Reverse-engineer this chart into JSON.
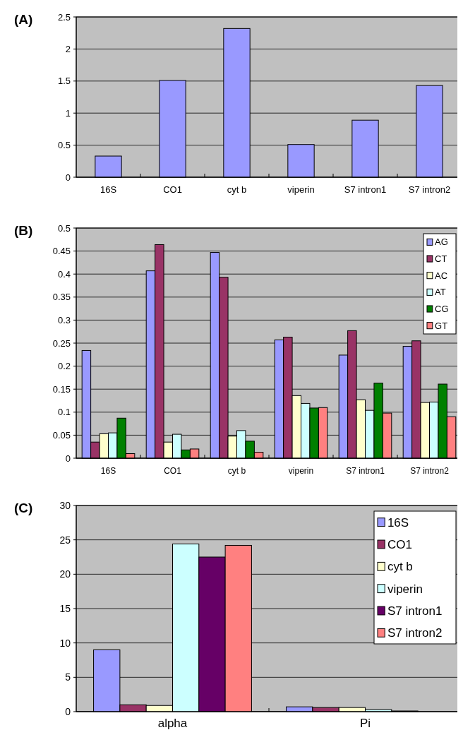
{
  "chart_data": [
    {
      "type": "bar",
      "title": "(A)",
      "categories": [
        "16S",
        "CO1",
        "cyt b",
        "viperin",
        "S7 intron1",
        "S7 intron2"
      ],
      "values": [
        0.33,
        1.51,
        2.32,
        0.51,
        0.89,
        1.43
      ],
      "color": "#9999ff",
      "ylim": [
        0,
        2.5
      ],
      "yticks": [
        0,
        0.5,
        1,
        1.5,
        2,
        2.5
      ],
      "grid": "y",
      "legend": false
    },
    {
      "type": "bar",
      "title": "(B)",
      "categories": [
        "16S",
        "CO1",
        "cyt b",
        "viperin",
        "S7 intron1",
        "S7 intron2"
      ],
      "series": [
        {
          "name": "AG",
          "color": "#9999ff",
          "values": [
            0.234,
            0.407,
            0.447,
            0.257,
            0.224,
            0.243
          ]
        },
        {
          "name": "CT",
          "color": "#993366",
          "values": [
            0.035,
            0.464,
            0.393,
            0.263,
            0.277,
            0.255
          ]
        },
        {
          "name": "AC",
          "color": "#ffffcc",
          "values": [
            0.053,
            0.035,
            0.048,
            0.136,
            0.127,
            0.121
          ]
        },
        {
          "name": "AT",
          "color": "#ccffff",
          "values": [
            0.055,
            0.052,
            0.06,
            0.119,
            0.104,
            0.122
          ]
        },
        {
          "name": "CG",
          "color": "#008000",
          "values": [
            0.087,
            0.018,
            0.037,
            0.109,
            0.163,
            0.161
          ]
        },
        {
          "name": "GT",
          "color": "#ff8080",
          "values": [
            0.01,
            0.02,
            0.013,
            0.11,
            0.098,
            0.09
          ]
        }
      ],
      "ylim": [
        0,
        0.5
      ],
      "yticks": [
        0,
        0.05,
        0.1,
        0.15,
        0.2,
        0.25,
        0.3,
        0.35,
        0.4,
        0.45,
        0.5
      ],
      "grid": "y",
      "legend": "top right"
    },
    {
      "type": "bar",
      "title": "(C)",
      "categories": [
        "alpha",
        "Pi"
      ],
      "series": [
        {
          "name": "16S",
          "color": "#9999ff",
          "values": [
            9.0,
            0.7
          ]
        },
        {
          "name": "CO1",
          "color": "#993366",
          "values": [
            1.0,
            0.6
          ]
        },
        {
          "name": "cyt b",
          "color": "#ffffcc",
          "values": [
            0.9,
            0.6
          ]
        },
        {
          "name": "viperin",
          "color": "#ccffff",
          "values": [
            24.4,
            0.3
          ]
        },
        {
          "name": "S7 intron1",
          "color": "#660066",
          "values": [
            22.5,
            0.1
          ]
        },
        {
          "name": "S7 intron2",
          "color": "#ff8080",
          "values": [
            24.2,
            null
          ]
        }
      ],
      "ylim": [
        0,
        30
      ],
      "yticks": [
        0,
        5,
        10,
        15,
        20,
        25,
        30
      ],
      "grid": "y",
      "legend": "top right"
    }
  ]
}
